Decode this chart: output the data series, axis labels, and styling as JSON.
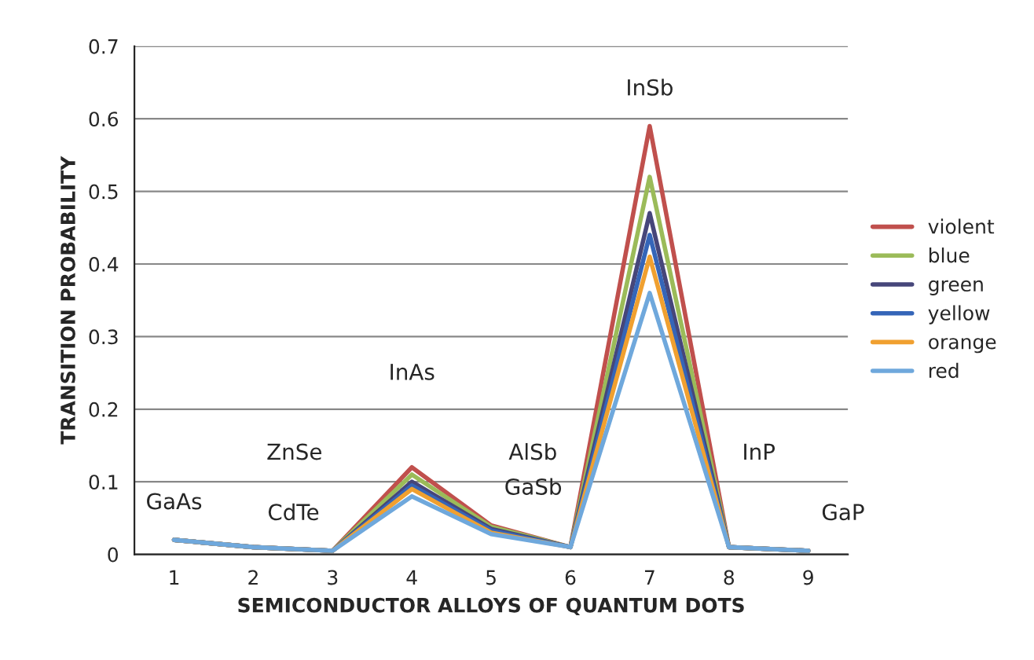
{
  "chart_data": {
    "type": "line",
    "xlabel": "SEMICONDUCTOR ALLOYS OF QUANTUM DOTS",
    "ylabel": "TRANSITION PROBABILITY",
    "categories": [
      "1",
      "2",
      "3",
      "4",
      "5",
      "6",
      "7",
      "8",
      "9"
    ],
    "series": [
      {
        "name": "violent",
        "color": "#c0504d",
        "values": [
          0.02,
          0.01,
          0.005,
          0.12,
          0.04,
          0.01,
          0.59,
          0.01,
          0.005
        ]
      },
      {
        "name": "blue",
        "color": "#9bbb59",
        "values": [
          0.02,
          0.01,
          0.005,
          0.11,
          0.038,
          0.01,
          0.52,
          0.01,
          0.005
        ]
      },
      {
        "name": "green",
        "color": "#46467a",
        "values": [
          0.02,
          0.01,
          0.005,
          0.1,
          0.035,
          0.01,
          0.47,
          0.01,
          0.005
        ]
      },
      {
        "name": "yellow",
        "color": "#3565b8",
        "values": [
          0.02,
          0.01,
          0.005,
          0.095,
          0.033,
          0.01,
          0.44,
          0.01,
          0.005
        ]
      },
      {
        "name": "orange",
        "color": "#f0a030",
        "values": [
          0.02,
          0.01,
          0.005,
          0.09,
          0.03,
          0.01,
          0.41,
          0.01,
          0.005
        ]
      },
      {
        "name": "red",
        "color": "#6fa8dc",
        "values": [
          0.02,
          0.01,
          0.005,
          0.08,
          0.028,
          0.01,
          0.36,
          0.01,
          0.005
        ]
      }
    ],
    "ylim": [
      0,
      0.7
    ],
    "yticks": [
      {
        "value": 0,
        "label": "0"
      },
      0.1,
      0.2,
      0.3,
      0.4,
      0.5,
      0.6,
      0.7
    ],
    "grid": "y",
    "legend": "right",
    "marker": "none",
    "line_style": "solid",
    "annotations": [
      "GaAs",
      "ZnSe",
      "CdTe",
      "InAs",
      "GaSb",
      "AlSb",
      "InSb",
      "InP",
      "GaP"
    ]
  }
}
